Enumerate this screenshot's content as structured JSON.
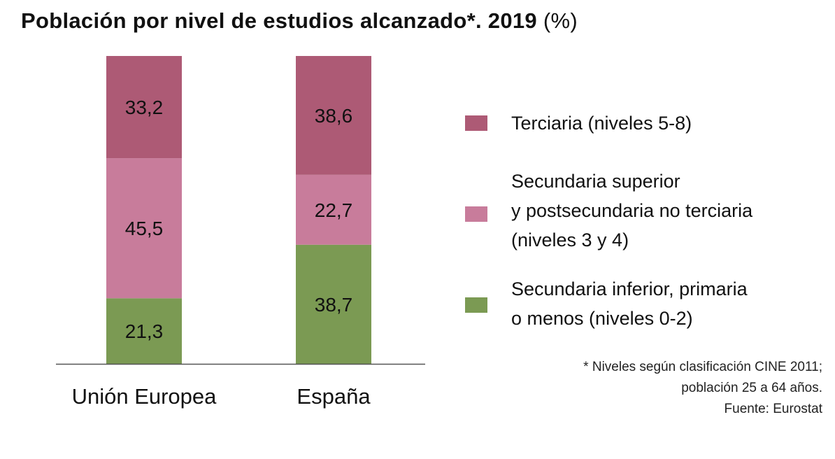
{
  "title": {
    "main": "Población por nivel de estudios alcanzado*. 2019",
    "unit": "(%)"
  },
  "colors": {
    "terciaria": "#ad5a75",
    "secundaria_superior": "#c87c9b",
    "secundaria_inferior": "#7b9a53",
    "axis": "#555555"
  },
  "legend": [
    {
      "key": "terciaria",
      "lines": [
        "Terciaria (niveles 5-8)"
      ]
    },
    {
      "key": "secundaria_superior",
      "lines": [
        "Secundaria superior",
        "y postsecundaria no terciaria",
        "(niveles 3 y 4)"
      ]
    },
    {
      "key": "secundaria_inferior",
      "lines": [
        "Secundaria inferior, primaria",
        "o menos (niveles 0-2)"
      ]
    }
  ],
  "notes": [
    "* Niveles según clasificación CINE 2011;",
    "población 25 a 64 años.",
    "Fuente: Eurostat"
  ],
  "chart_data": {
    "type": "bar",
    "stacked": true,
    "categories": [
      "Unión Europea",
      "España"
    ],
    "series": [
      {
        "name": "Secundaria inferior, primaria o menos (niveles 0-2)",
        "key": "secundaria_inferior",
        "values": [
          21.3,
          38.7
        ],
        "labels": [
          "21,3",
          "38,7"
        ]
      },
      {
        "name": "Secundaria superior y postsecundaria no terciaria (niveles 3 y 4)",
        "key": "secundaria_superior",
        "values": [
          45.5,
          22.7
        ],
        "labels": [
          "45,5",
          "22,7"
        ]
      },
      {
        "name": "Terciaria (niveles 5-8)",
        "key": "terciaria",
        "values": [
          33.2,
          38.6
        ],
        "labels": [
          "33,2",
          "38,6"
        ]
      }
    ],
    "ylim": [
      0,
      100
    ],
    "legend_position": "right",
    "grid": false
  }
}
